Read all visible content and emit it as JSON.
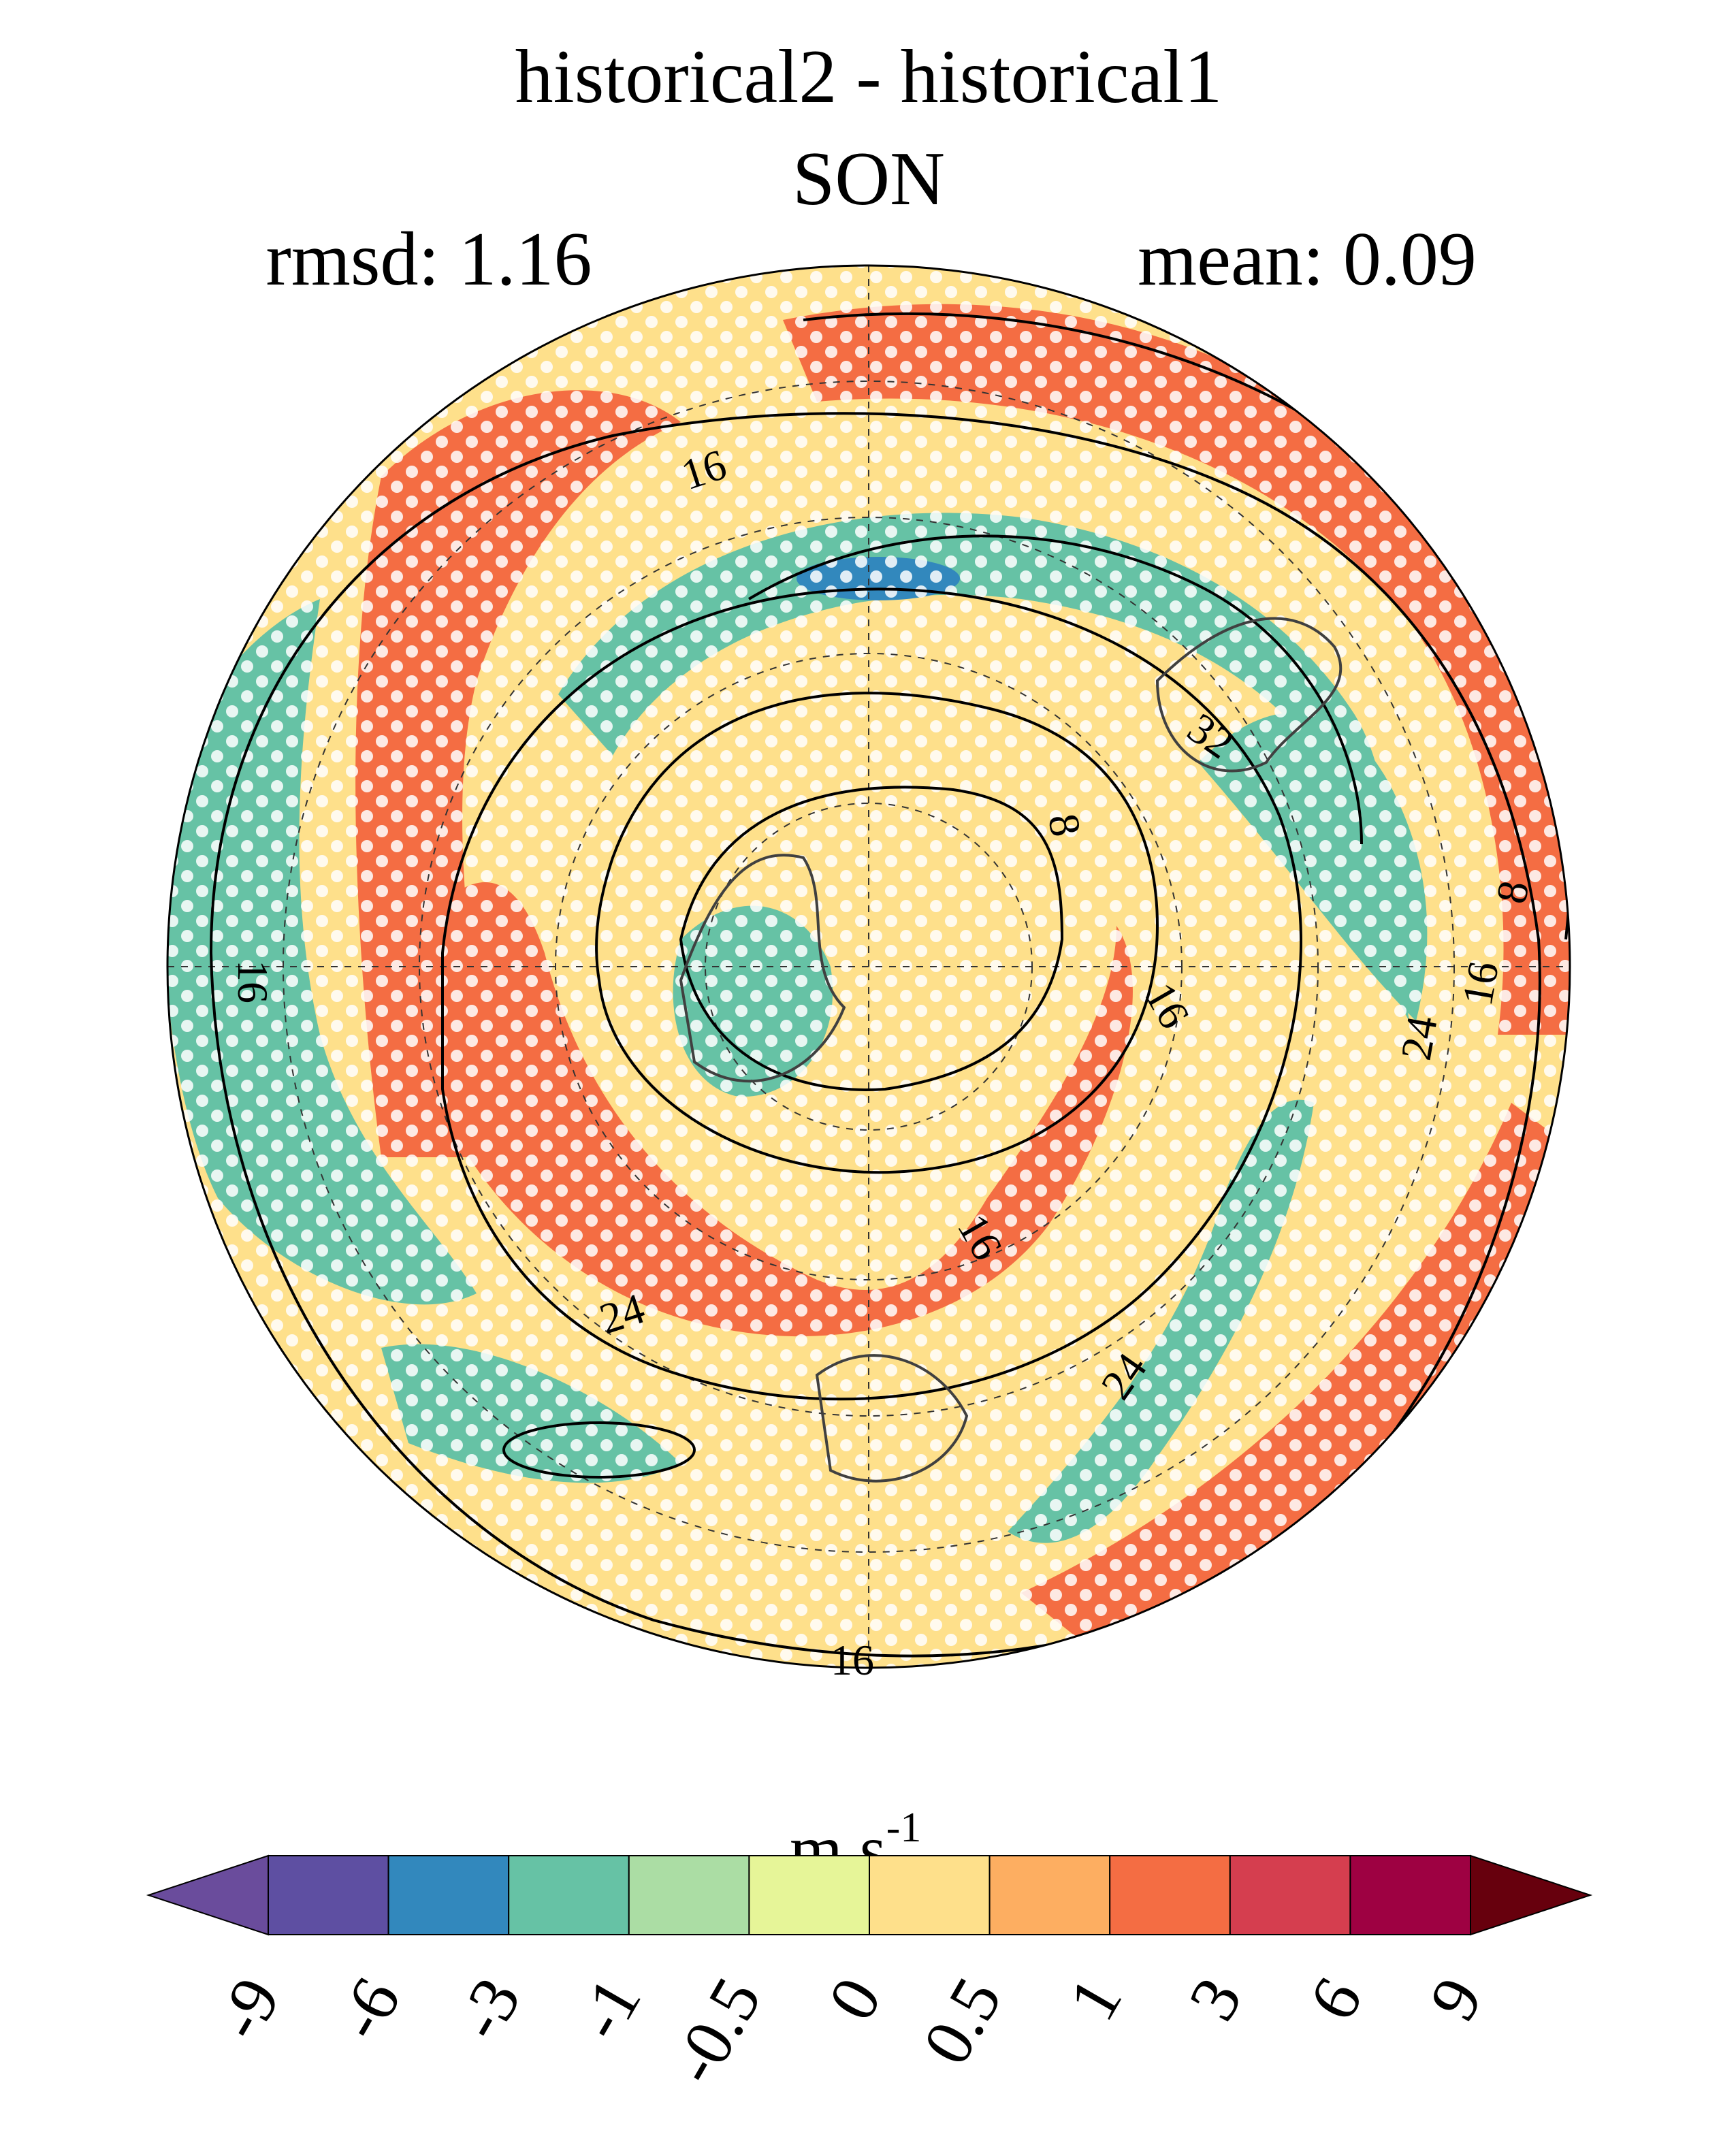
{
  "title": "historical2 - historical1",
  "subtitle": "SON",
  "stats": {
    "rmsd_label": "rmsd: 1.16",
    "mean_label": "mean: 0.09"
  },
  "chart_data": {
    "type": "heatmap",
    "projection": "north-polar-stereographic",
    "title": "historical2 - historical1",
    "subtitle": "SON",
    "rmsd": 1.16,
    "mean": 0.09,
    "significance_stippling": true,
    "grid": true,
    "units_base": "m s",
    "units_exp": "-1",
    "colorbar": {
      "placement": "bottom",
      "extend": "both",
      "levels": [
        -9,
        -6,
        -3,
        -1,
        -0.5,
        0,
        0.5,
        1,
        3,
        6,
        9
      ],
      "tick_labels": [
        "-9",
        "-6",
        "-3",
        "-1",
        "-0.5",
        "0",
        "0.5",
        "1",
        "3",
        "6",
        "9"
      ],
      "colors": [
        "#5e4fa2",
        "#3288bd",
        "#66c2a5",
        "#abdda4",
        "#e6f598",
        "#fee08b",
        "#fdae61",
        "#f46d43",
        "#d53e4f",
        "#9e0142"
      ],
      "under_color": "#6a4c9c",
      "over_color": "#67000d"
    },
    "contour_labels": [
      "16",
      "16",
      "8",
      "32",
      "8",
      "16",
      "24",
      "16",
      "16",
      "24",
      "24",
      "16"
    ]
  }
}
